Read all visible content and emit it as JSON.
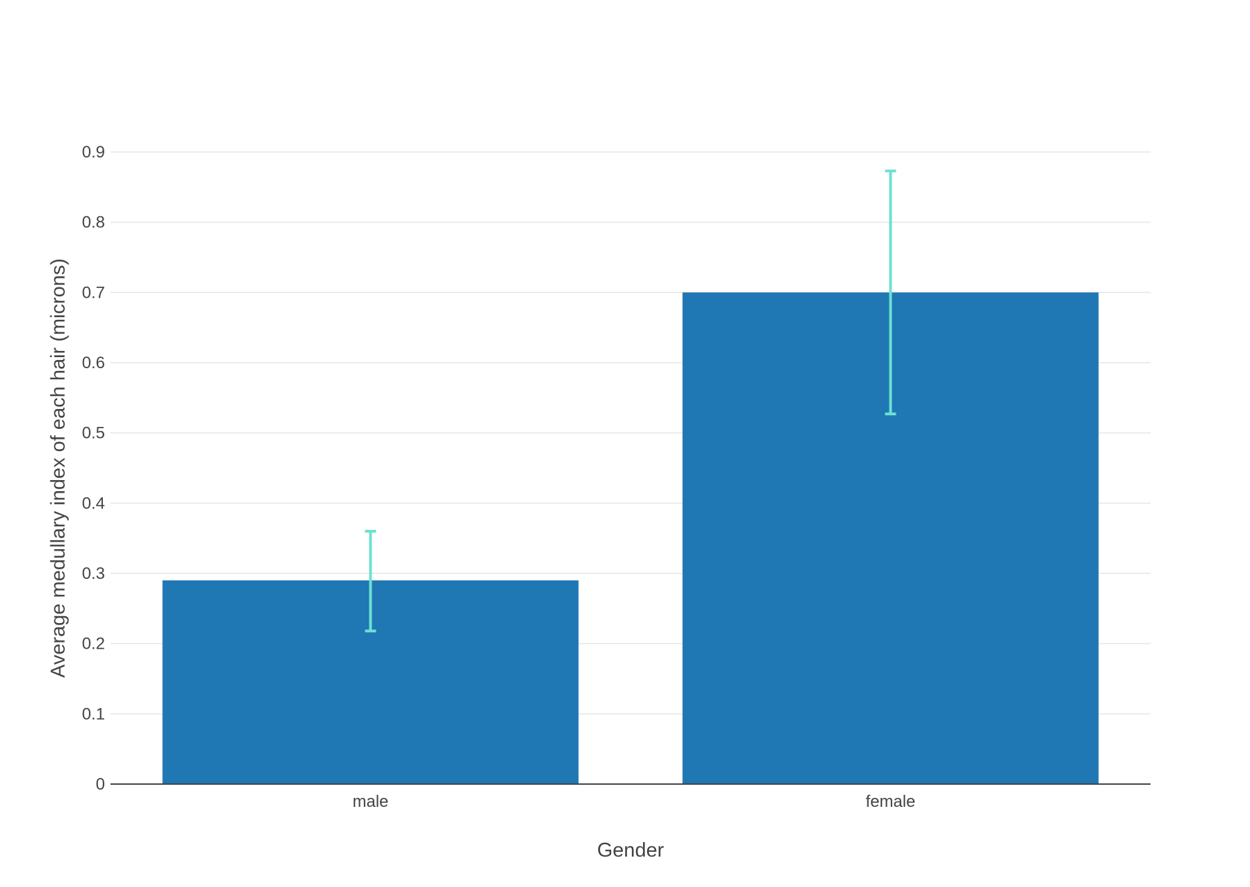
{
  "chart_data": {
    "type": "bar",
    "categories": [
      "male",
      "female"
    ],
    "series": [
      {
        "values": [
          0.29,
          0.7
        ],
        "error_upper": [
          0.36,
          0.873
        ],
        "error_lower": [
          0.218,
          0.527
        ],
        "color": "#1f77b4",
        "error_color": "#6ee0d2"
      }
    ],
    "xlabel": "Gender",
    "ylabel": "Average medullary index of each hair (microns)",
    "ylim": [
      0,
      0.9
    ],
    "yticks": [
      0,
      0.1,
      0.2,
      0.3,
      0.4,
      0.5,
      0.6,
      0.7,
      0.8,
      0.9
    ],
    "ytick_labels": [
      "0",
      "0.1",
      "0.2",
      "0.3",
      "0.4",
      "0.5",
      "0.6",
      "0.7",
      "0.8",
      "0.9"
    ],
    "grid": true,
    "legend": "none"
  }
}
